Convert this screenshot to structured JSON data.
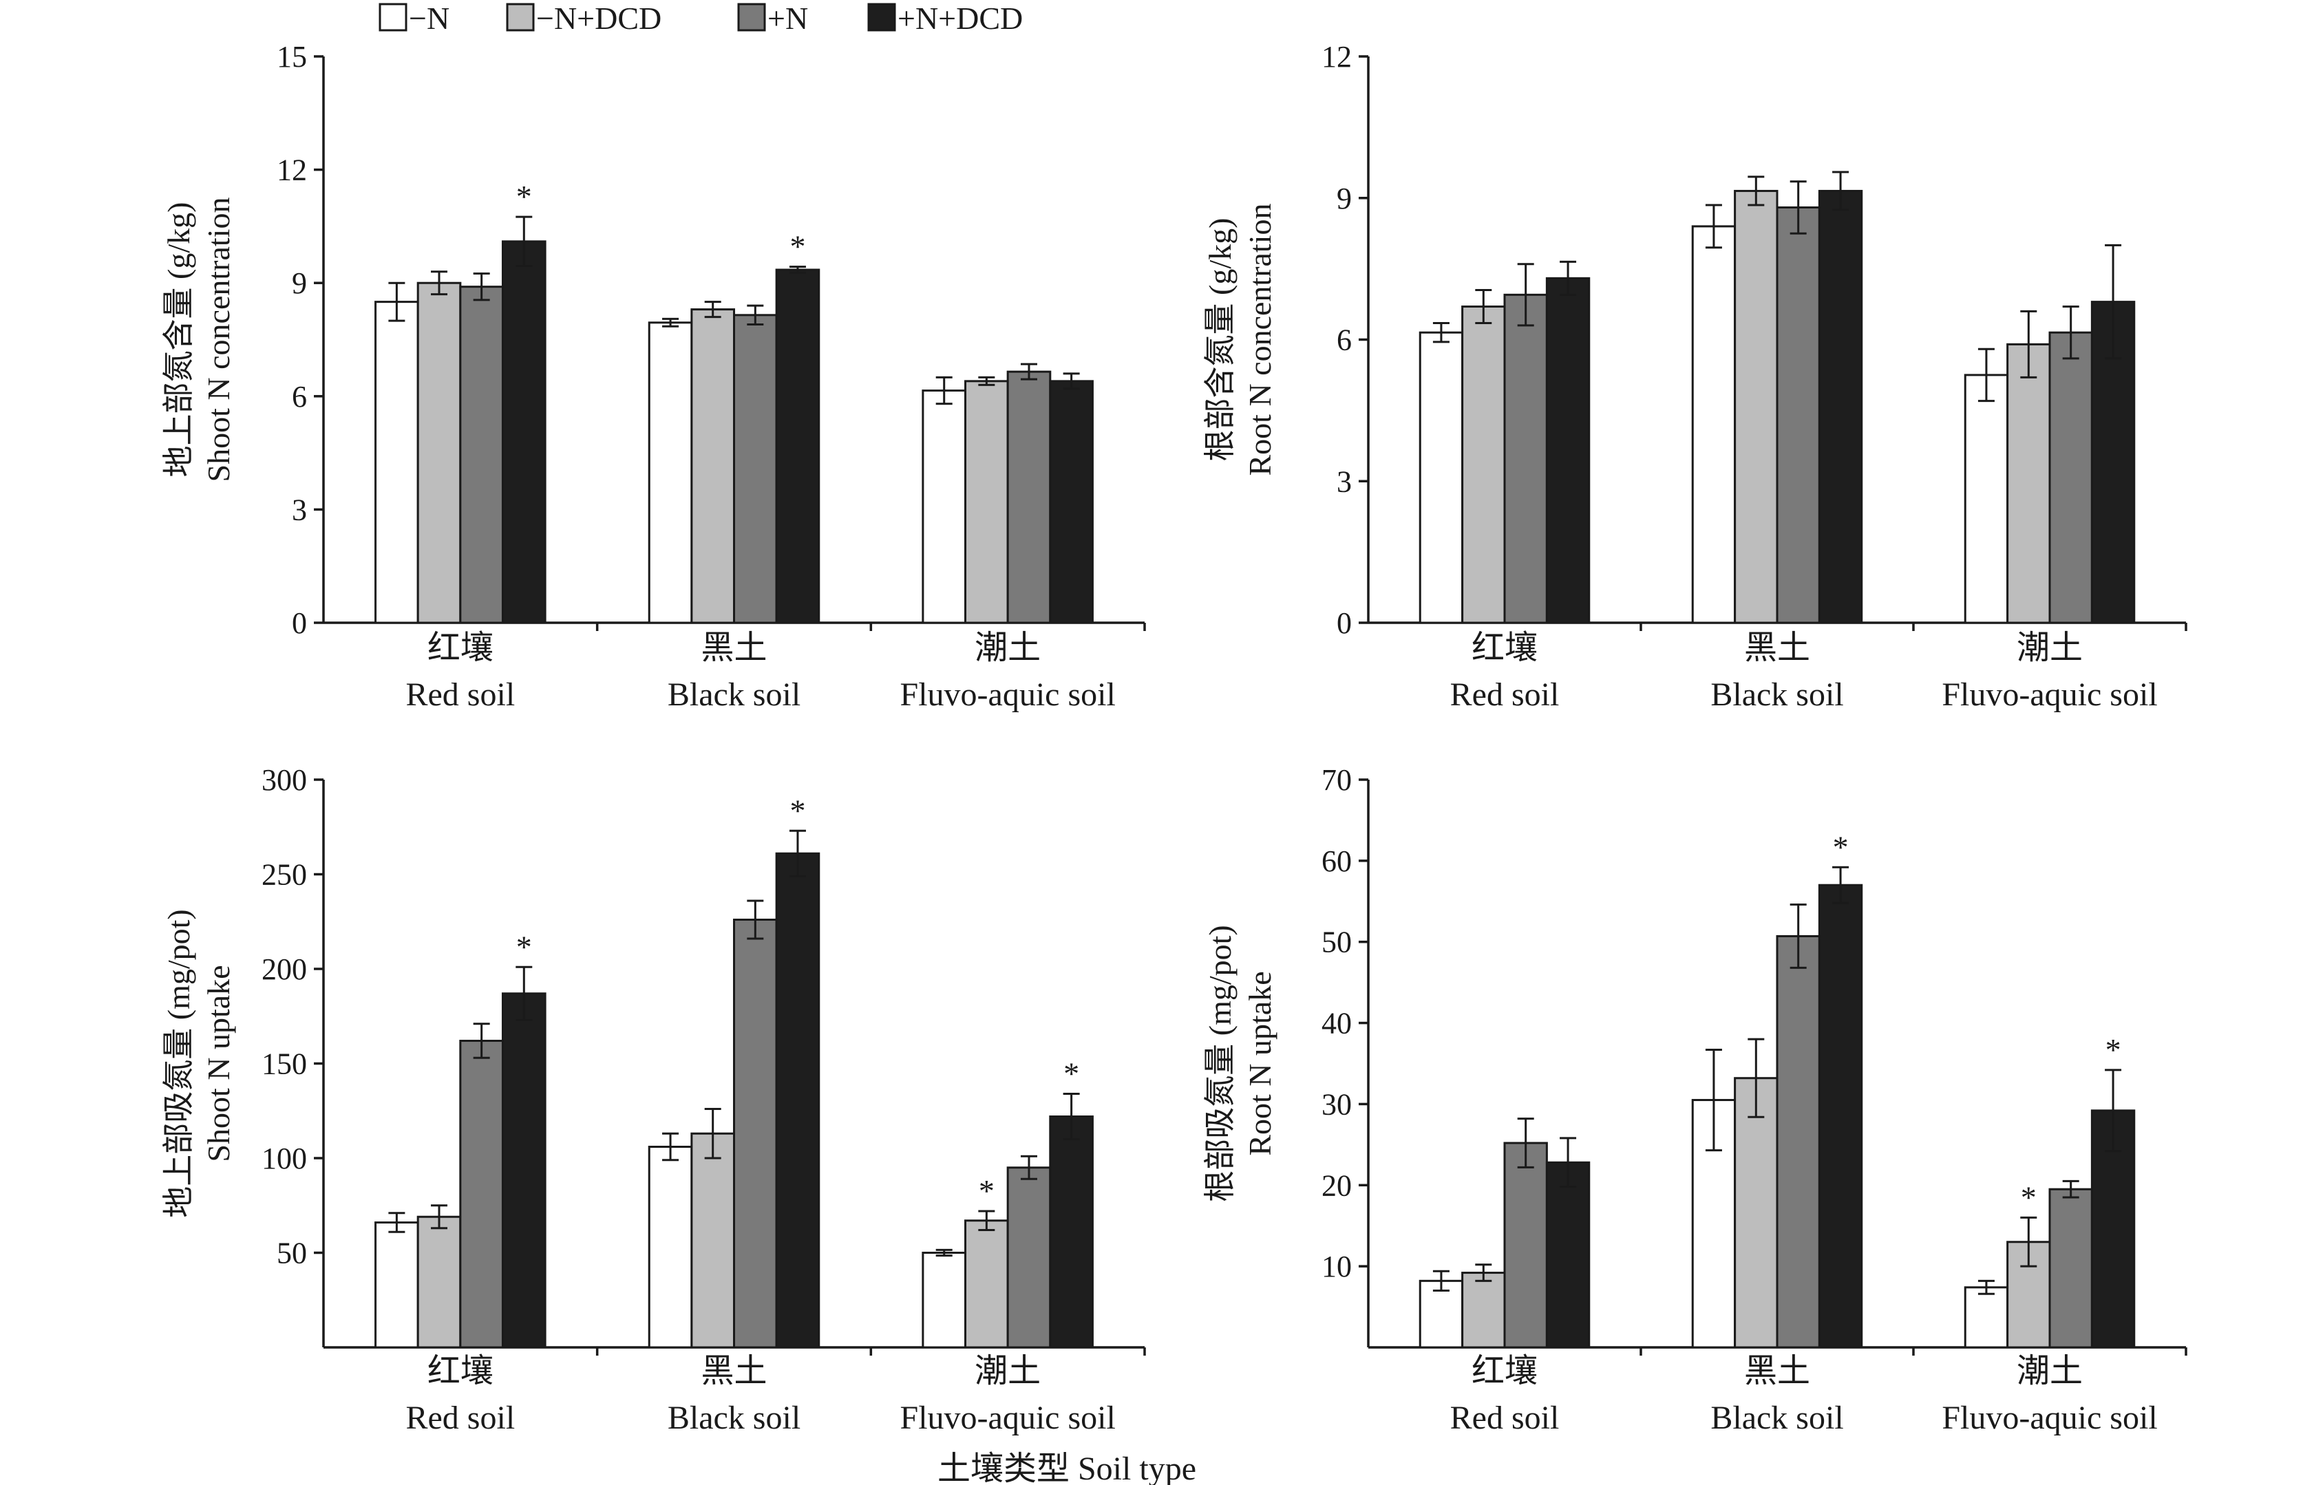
{
  "legend": [
    {
      "label": "−N",
      "color": "#ffffff"
    },
    {
      "label": "−N+DCD",
      "color": "#bdbdbd"
    },
    {
      "label": "+N",
      "color": "#7a7a7a"
    },
    {
      "label": "+N+DCD",
      "color": "#1e1e1e"
    }
  ],
  "x_axis_title": "土壤类型 Soil type",
  "chart_data": [
    {
      "type": "bar",
      "panel": "top-left",
      "ylabel_cn": "地上部氮含量 (g/kg)",
      "ylabel_en": "Shoot N concentration",
      "ylim": [
        0,
        15
      ],
      "yticks": [
        0,
        3,
        6,
        9,
        12,
        15
      ],
      "categories": [
        {
          "cn": "红壤",
          "en": "Red soil"
        },
        {
          "cn": "黑土",
          "en": "Black soil"
        },
        {
          "cn": "潮土",
          "en": "Fluvo-aquic soil"
        }
      ],
      "series": [
        {
          "name": "−N",
          "values": [
            8.5,
            7.95,
            6.15
          ],
          "errors": [
            0.5,
            0.1,
            0.35
          ]
        },
        {
          "name": "−N+DCD",
          "values": [
            9.0,
            8.3,
            6.4
          ],
          "errors": [
            0.3,
            0.2,
            0.1
          ]
        },
        {
          "name": "+N",
          "values": [
            8.9,
            8.15,
            6.65
          ],
          "errors": [
            0.35,
            0.25,
            0.2
          ]
        },
        {
          "name": "+N+DCD",
          "values": [
            10.1,
            9.35,
            6.4
          ],
          "errors": [
            0.65,
            0.08,
            0.2
          ]
        }
      ],
      "stars": [
        [
          false,
          false,
          false,
          true
        ],
        [
          false,
          false,
          false,
          true
        ],
        [
          false,
          false,
          false,
          false
        ]
      ]
    },
    {
      "type": "bar",
      "panel": "top-right",
      "ylabel_cn": "根部含氮量 (g/kg)",
      "ylabel_en": "Root N concentration",
      "ylim": [
        0,
        12
      ],
      "yticks": [
        0,
        3,
        6,
        9,
        12
      ],
      "categories": [
        {
          "cn": "红壤",
          "en": "Red soil"
        },
        {
          "cn": "黑土",
          "en": "Black soil"
        },
        {
          "cn": "潮土",
          "en": "Fluvo-aquic soil"
        }
      ],
      "series": [
        {
          "name": "−N",
          "values": [
            6.15,
            8.4,
            5.25
          ],
          "errors": [
            0.2,
            0.45,
            0.55
          ]
        },
        {
          "name": "−N+DCD",
          "values": [
            6.7,
            9.15,
            5.9
          ],
          "errors": [
            0.35,
            0.3,
            0.7
          ]
        },
        {
          "name": "+N",
          "values": [
            6.95,
            8.8,
            6.15
          ],
          "errors": [
            0.65,
            0.55,
            0.55
          ]
        },
        {
          "name": "+N+DCD",
          "values": [
            7.3,
            9.15,
            6.8
          ],
          "errors": [
            0.35,
            0.4,
            1.2
          ]
        }
      ],
      "stars": [
        [
          false,
          false,
          false,
          false
        ],
        [
          false,
          false,
          false,
          false
        ],
        [
          false,
          false,
          false,
          false
        ]
      ]
    },
    {
      "type": "bar",
      "panel": "bottom-left",
      "ylabel_cn": "地上部吸氮量 (mg/pot)",
      "ylabel_en": "Shoot N uptake",
      "ylim": [
        0,
        300
      ],
      "yticks": [
        50,
        100,
        150,
        200,
        250,
        300
      ],
      "categories": [
        {
          "cn": "红壤",
          "en": "Red soil"
        },
        {
          "cn": "黑土",
          "en": "Black soil"
        },
        {
          "cn": "潮土",
          "en": "Fluvo-aquic soil"
        }
      ],
      "series": [
        {
          "name": "−N",
          "values": [
            66,
            106,
            50
          ],
          "errors": [
            5,
            7,
            1.5
          ]
        },
        {
          "name": "−N+DCD",
          "values": [
            69,
            113,
            67
          ],
          "errors": [
            6,
            13,
            5
          ]
        },
        {
          "name": "+N",
          "values": [
            162,
            226,
            95
          ],
          "errors": [
            9,
            10,
            6
          ]
        },
        {
          "name": "+N+DCD",
          "values": [
            187,
            261,
            122
          ],
          "errors": [
            14,
            12,
            12
          ]
        }
      ],
      "stars": [
        [
          false,
          false,
          false,
          true
        ],
        [
          false,
          false,
          false,
          true
        ],
        [
          false,
          true,
          false,
          true
        ]
      ]
    },
    {
      "type": "bar",
      "panel": "bottom-right",
      "ylabel_cn": "根部吸氮量 (mg/pot)",
      "ylabel_en": "Root N uptake",
      "ylim": [
        0,
        70
      ],
      "yticks": [
        10,
        20,
        30,
        40,
        50,
        60,
        70
      ],
      "categories": [
        {
          "cn": "红壤",
          "en": "Red soil"
        },
        {
          "cn": "黑土",
          "en": "Black soil"
        },
        {
          "cn": "潮土",
          "en": "Fluvo-aquic soil"
        }
      ],
      "series": [
        {
          "name": "−N",
          "values": [
            8.2,
            30.5,
            7.4
          ],
          "errors": [
            1.2,
            6.2,
            0.8
          ]
        },
        {
          "name": "−N+DCD",
          "values": [
            9.2,
            33.2,
            13.0
          ],
          "errors": [
            1.0,
            4.8,
            3.0
          ]
        },
        {
          "name": "+N",
          "values": [
            25.2,
            50.7,
            19.5
          ],
          "errors": [
            3.0,
            3.9,
            1.0
          ]
        },
        {
          "name": "+N+DCD",
          "values": [
            22.8,
            57.0,
            29.2
          ],
          "errors": [
            3.0,
            2.2,
            5.0
          ]
        }
      ],
      "stars": [
        [
          false,
          false,
          false,
          false
        ],
        [
          false,
          false,
          false,
          true
        ],
        [
          false,
          true,
          false,
          true
        ]
      ]
    }
  ]
}
